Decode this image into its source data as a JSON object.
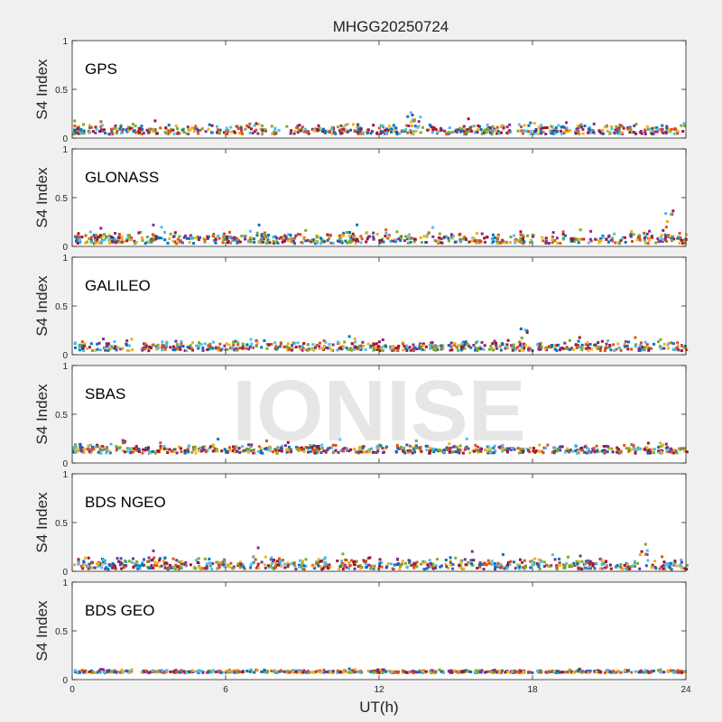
{
  "figure_title": "MHGG20250724",
  "x_axis_label": "UT(h)",
  "watermark": "IONISE",
  "chart_data": [
    {
      "type": "scatter",
      "panel": "GPS",
      "ylabel": "S4 Index",
      "xlim": [
        0,
        24
      ],
      "ylim": [
        0,
        1
      ],
      "x_ticks": [
        0,
        6,
        12,
        18,
        24
      ],
      "y_ticks": [
        0,
        0.5,
        1
      ],
      "y_tick_labels": [
        "0",
        "0.5",
        "1"
      ],
      "baseline_s4": [
        0.04,
        0.15
      ],
      "peak_s4": 0.3,
      "peak_at_ut": 13.2
    },
    {
      "type": "scatter",
      "panel": "GLONASS",
      "ylabel": "S4 Index",
      "xlim": [
        0,
        24
      ],
      "ylim": [
        0,
        1
      ],
      "x_ticks": [
        0,
        6,
        12,
        18,
        24
      ],
      "y_ticks": [
        0,
        0.5,
        1
      ],
      "y_tick_labels": [
        "0",
        "0.5",
        "1"
      ],
      "baseline_s4": [
        0.03,
        0.16
      ],
      "peak_s4": 0.38,
      "peak_at_ut": 23.3
    },
    {
      "type": "scatter",
      "panel": "GALILEO",
      "ylabel": "S4 Index",
      "xlim": [
        0,
        24
      ],
      "ylim": [
        0,
        1
      ],
      "x_ticks": [
        0,
        6,
        12,
        18,
        24
      ],
      "y_ticks": [
        0,
        0.5,
        1
      ],
      "y_tick_labels": [
        "0",
        "0.5",
        "1"
      ],
      "baseline_s4": [
        0.04,
        0.15
      ],
      "peak_s4": 0.27,
      "peak_at_ut": 17.6
    },
    {
      "type": "scatter",
      "panel": "SBAS",
      "ylabel": "S4 Index",
      "xlim": [
        0,
        24
      ],
      "ylim": [
        0,
        1
      ],
      "x_ticks": [
        0,
        6,
        12,
        18,
        24
      ],
      "y_ticks": [
        0,
        0.5,
        1
      ],
      "y_tick_labels": [
        "0",
        "0.5",
        "1"
      ],
      "baseline_s4": [
        0.1,
        0.2
      ],
      "peak_s4": 0.25,
      "peak_at_ut": 2.0
    },
    {
      "type": "scatter",
      "panel": "BDS NGEO",
      "ylabel": "S4 Index",
      "xlim": [
        0,
        24
      ],
      "ylim": [
        0,
        1
      ],
      "x_ticks": [
        0,
        6,
        12,
        18,
        24
      ],
      "y_ticks": [
        0,
        0.5,
        1
      ],
      "y_tick_labels": [
        "0",
        "0.5",
        "1"
      ],
      "baseline_s4": [
        0.02,
        0.15
      ],
      "peak_s4": 0.3,
      "peak_at_ut": 22.3
    },
    {
      "type": "scatter",
      "panel": "BDS GEO",
      "ylabel": "S4 Index",
      "xlim": [
        0,
        24
      ],
      "ylim": [
        0,
        1
      ],
      "x_ticks": [
        0,
        6,
        12,
        18,
        24
      ],
      "y_ticks": [
        0,
        0.5,
        1
      ],
      "y_tick_labels": [
        "0",
        "0.5",
        "1"
      ],
      "baseline_s4": [
        0.07,
        0.1
      ],
      "peak_s4": 0.1,
      "peak_at_ut": 12.0
    }
  ],
  "series_colors": [
    "#0072BD",
    "#D95319",
    "#EDB120",
    "#7E2F8E",
    "#77AC30",
    "#4DBEEE",
    "#A2142F"
  ]
}
